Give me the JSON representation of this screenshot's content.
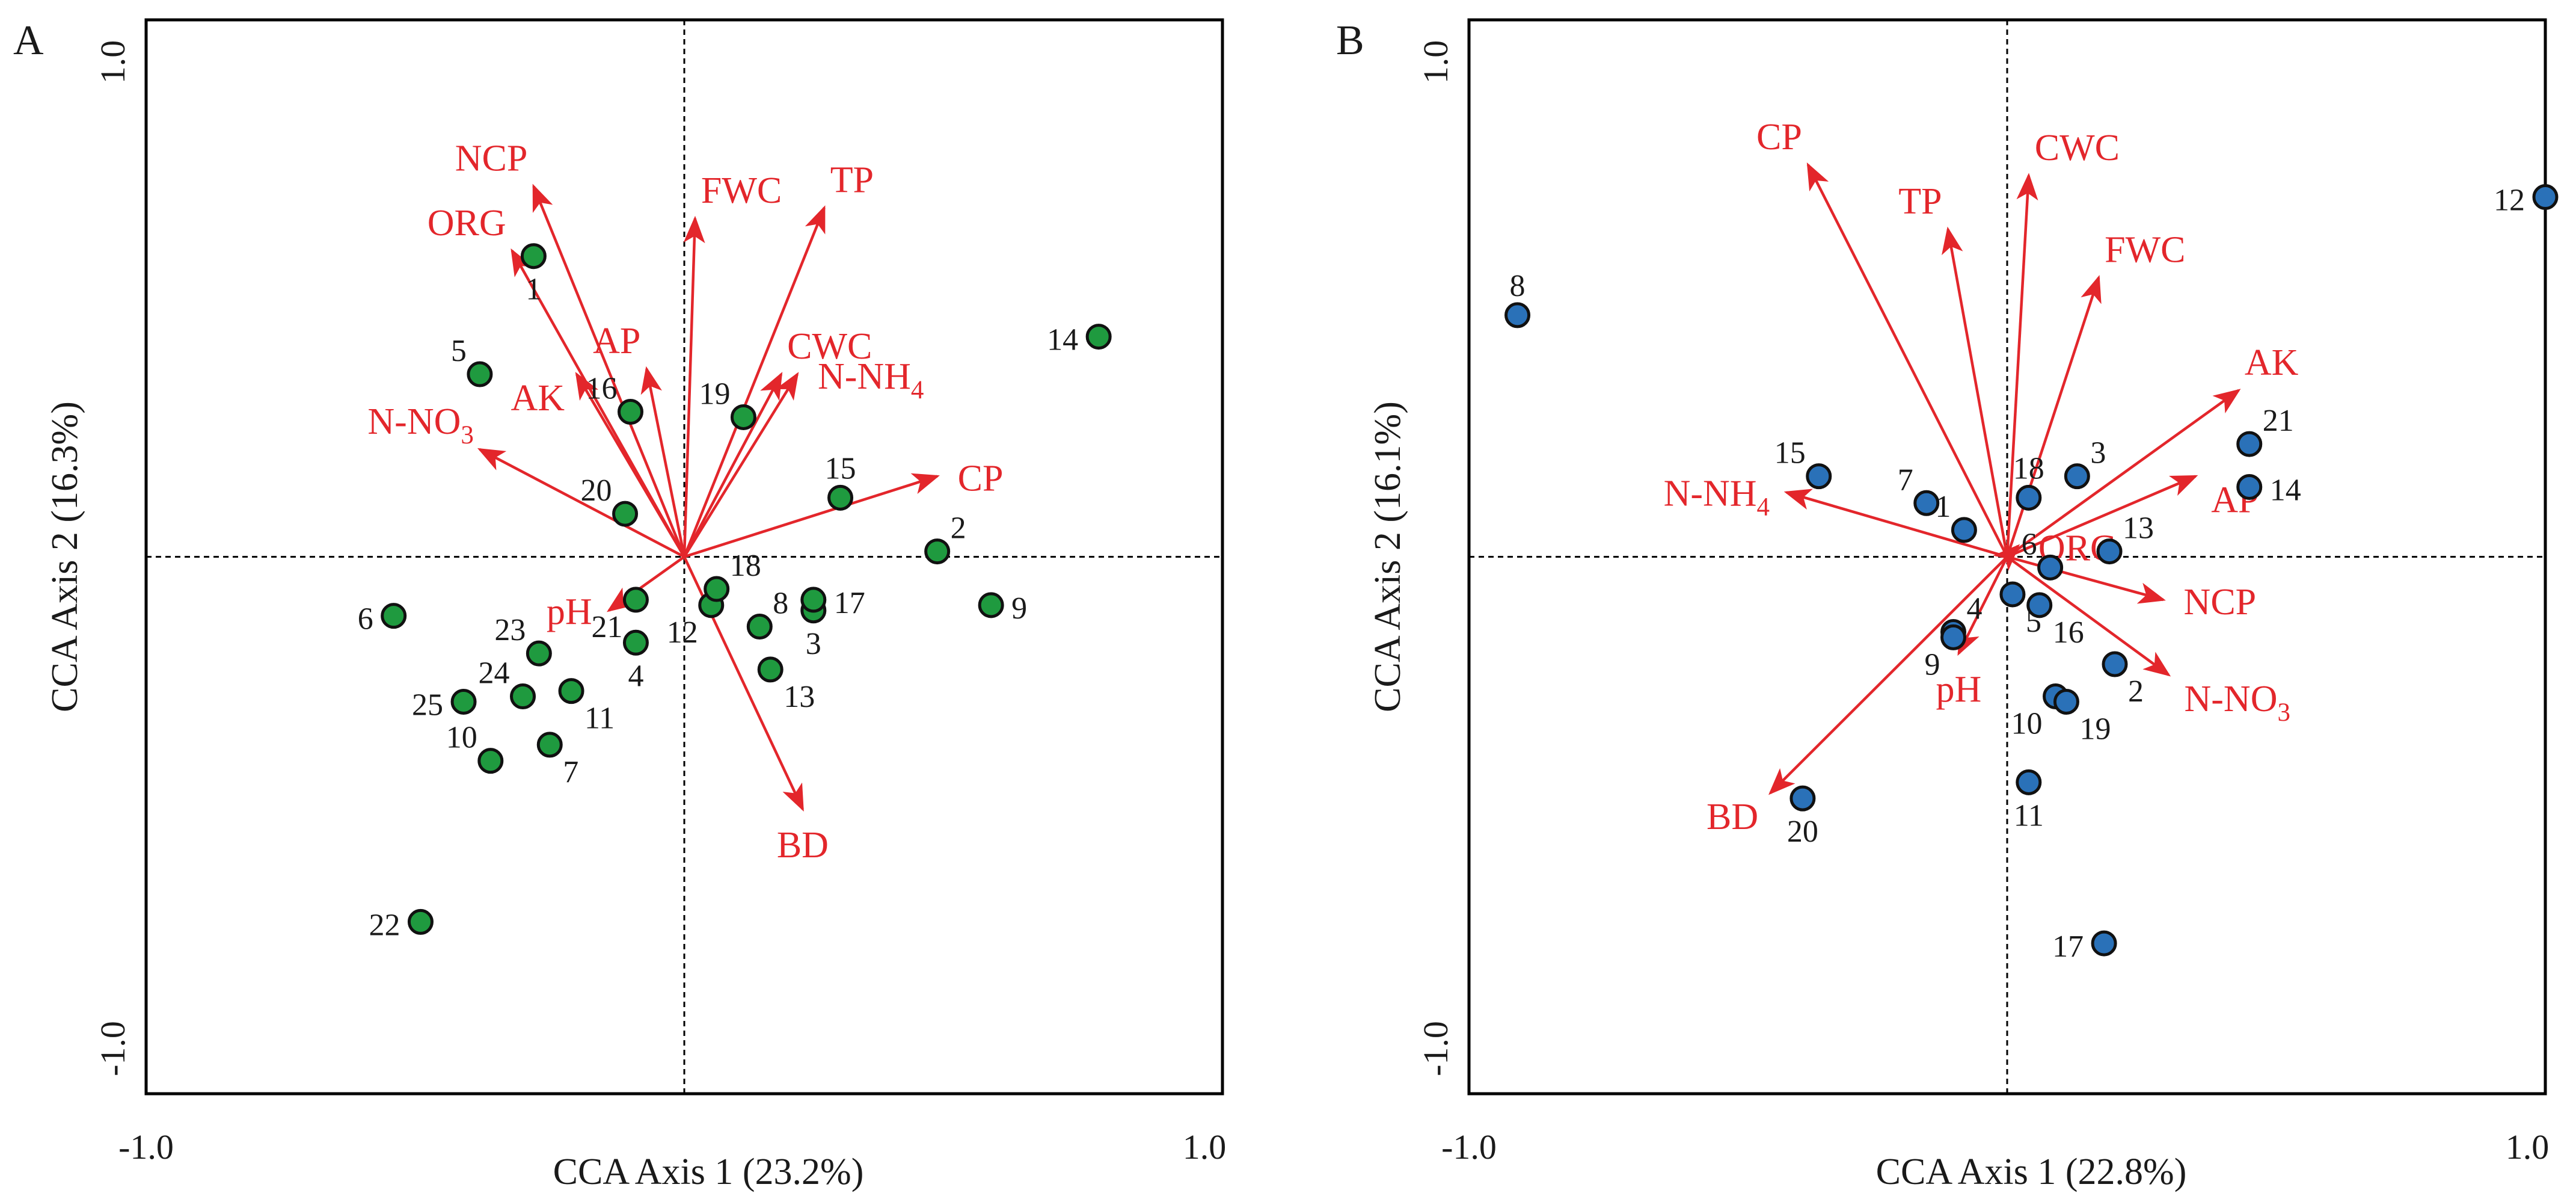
{
  "colors": {
    "arrow": "#e3262b",
    "label": "#e3262b",
    "panel_A_point": "#1f9a3f",
    "panel_B_point": "#2a71b8",
    "axis": "#000000",
    "text": "#1a1a1a"
  },
  "chart_data": [
    {
      "panel": "A",
      "type": "scatter",
      "subtype": "cca-biplot",
      "xlabel": "CCA Axis 1 (23.2%)",
      "ylabel": "CCA Axis 2 (16.3%)",
      "xlim": [
        -1.0,
        1.0
      ],
      "ylim": [
        -1.0,
        1.0
      ],
      "tick_labels": {
        "x_min": "-1.0",
        "x_max": "1.0",
        "y_min": "-1.0",
        "y_max": "1.0"
      },
      "points": [
        {
          "label": "1",
          "x": -0.28,
          "y": 0.56,
          "label_pos": "below"
        },
        {
          "label": "2",
          "x": 0.47,
          "y": 0.01,
          "label_pos": "upper-right"
        },
        {
          "label": "3",
          "x": 0.24,
          "y": -0.1,
          "label_pos": "below"
        },
        {
          "label": "4",
          "x": -0.09,
          "y": -0.16,
          "label_pos": "below"
        },
        {
          "label": "5",
          "x": -0.38,
          "y": 0.34,
          "label_pos": "upper-left"
        },
        {
          "label": "6",
          "x": -0.54,
          "y": -0.11,
          "label_pos": "left"
        },
        {
          "label": "7",
          "x": -0.25,
          "y": -0.35,
          "label_pos": "lower-right"
        },
        {
          "label": "8",
          "x": 0.14,
          "y": -0.13,
          "label_pos": "upper-right"
        },
        {
          "label": "9",
          "x": 0.57,
          "y": -0.09,
          "label_pos": "right"
        },
        {
          "label": "10",
          "x": -0.36,
          "y": -0.38,
          "label_pos": "upper-left"
        },
        {
          "label": "11",
          "x": -0.21,
          "y": -0.25,
          "label_pos": "lower-right"
        },
        {
          "label": "12",
          "x": 0.05,
          "y": -0.09,
          "label_pos": "lower-left"
        },
        {
          "label": "13",
          "x": 0.16,
          "y": -0.21,
          "label_pos": "lower-right"
        },
        {
          "label": "14",
          "x": 0.77,
          "y": 0.41,
          "label_pos": "left"
        },
        {
          "label": "15",
          "x": 0.29,
          "y": 0.11,
          "label_pos": "above"
        },
        {
          "label": "16",
          "x": -0.1,
          "y": 0.27,
          "label_pos": "upper-left"
        },
        {
          "label": "17",
          "x": 0.24,
          "y": -0.08,
          "label_pos": "right"
        },
        {
          "label": "18",
          "x": 0.06,
          "y": -0.06,
          "label_pos": "upper-right"
        },
        {
          "label": "19",
          "x": 0.11,
          "y": 0.26,
          "label_pos": "upper-left"
        },
        {
          "label": "20",
          "x": -0.11,
          "y": 0.08,
          "label_pos": "upper-left"
        },
        {
          "label": "21",
          "x": -0.09,
          "y": -0.08,
          "label_pos": "lower-left"
        },
        {
          "label": "22",
          "x": -0.49,
          "y": -0.68,
          "label_pos": "left"
        },
        {
          "label": "23",
          "x": -0.27,
          "y": -0.18,
          "label_pos": "upper-left"
        },
        {
          "label": "24",
          "x": -0.3,
          "y": -0.26,
          "label_pos": "upper-left"
        },
        {
          "label": "25",
          "x": -0.41,
          "y": -0.27,
          "label_pos": "left"
        }
      ],
      "vectors": [
        {
          "label": "NCP",
          "x": -0.28,
          "y": 0.69,
          "label_pos": "upper-left"
        },
        {
          "label": "ORG",
          "x": -0.32,
          "y": 0.57,
          "label_pos": "upper-left"
        },
        {
          "label": "AP",
          "x": -0.07,
          "y": 0.35,
          "label_pos": "upper-left"
        },
        {
          "label": "AK",
          "x": -0.2,
          "y": 0.34,
          "label_pos": "lower-left"
        },
        {
          "label": "N-NO3",
          "x": -0.38,
          "y": 0.2,
          "label_pos": "upper-left"
        },
        {
          "label": "FWC",
          "x": 0.02,
          "y": 0.63,
          "label_pos": "upper-right"
        },
        {
          "label": "TP",
          "x": 0.26,
          "y": 0.65,
          "label_pos": "upper-right"
        },
        {
          "label": "CWC",
          "x": 0.18,
          "y": 0.34,
          "label_pos": "upper-right"
        },
        {
          "label": "N-NH4",
          "x": 0.21,
          "y": 0.34,
          "label_pos": "right"
        },
        {
          "label": "CP",
          "x": 0.47,
          "y": 0.15,
          "label_pos": "right"
        },
        {
          "label": "pH",
          "x": -0.14,
          "y": -0.1,
          "label_pos": "left"
        },
        {
          "label": "BD",
          "x": 0.22,
          "y": -0.47,
          "label_pos": "below"
        }
      ]
    },
    {
      "panel": "B",
      "type": "scatter",
      "subtype": "cca-biplot",
      "xlabel": "CCA Axis 1 (22.8%)",
      "ylabel": "CCA Axis 2 (16.1%)",
      "xlim": [
        -1.0,
        1.0
      ],
      "ylim": [
        -1.0,
        1.0
      ],
      "tick_labels": {
        "x_min": "-1.0",
        "x_max": "1.0",
        "y_min": "-1.0",
        "y_max": "1.0"
      },
      "points": [
        {
          "label": "1",
          "x": -0.08,
          "y": 0.05,
          "label_pos": "upper-left"
        },
        {
          "label": "2",
          "x": 0.2,
          "y": -0.2,
          "label_pos": "lower-right"
        },
        {
          "label": "3",
          "x": 0.13,
          "y": 0.15,
          "label_pos": "upper-right"
        },
        {
          "label": "4",
          "x": -0.1,
          "y": -0.14,
          "label_pos": "upper-right"
        },
        {
          "label": "5",
          "x": 0.01,
          "y": -0.07,
          "label_pos": "lower-right"
        },
        {
          "label": "6",
          "x": 0.08,
          "y": -0.02,
          "label_pos": "upper-left"
        },
        {
          "label": "7",
          "x": -0.15,
          "y": 0.1,
          "label_pos": "upper-left"
        },
        {
          "label": "8",
          "x": -0.91,
          "y": 0.45,
          "label_pos": "above"
        },
        {
          "label": "9",
          "x": -0.1,
          "y": -0.15,
          "label_pos": "lower-left"
        },
        {
          "label": "10",
          "x": 0.09,
          "y": -0.26,
          "label_pos": "lower-left"
        },
        {
          "label": "11",
          "x": 0.04,
          "y": -0.42,
          "label_pos": "below"
        },
        {
          "label": "12",
          "x": 1.0,
          "y": 0.67,
          "label_pos": "left"
        },
        {
          "label": "13",
          "x": 0.19,
          "y": 0.01,
          "label_pos": "upper-right"
        },
        {
          "label": "14",
          "x": 0.45,
          "y": 0.13,
          "label_pos": "right"
        },
        {
          "label": "15",
          "x": -0.35,
          "y": 0.15,
          "label_pos": "upper-left"
        },
        {
          "label": "16",
          "x": 0.06,
          "y": -0.09,
          "label_pos": "lower-right"
        },
        {
          "label": "17",
          "x": 0.18,
          "y": -0.72,
          "label_pos": "left"
        },
        {
          "label": "18",
          "x": 0.04,
          "y": 0.11,
          "label_pos": "above"
        },
        {
          "label": "19",
          "x": 0.11,
          "y": -0.27,
          "label_pos": "lower-right"
        },
        {
          "label": "20",
          "x": -0.38,
          "y": -0.45,
          "label_pos": "below"
        },
        {
          "label": "21",
          "x": 0.45,
          "y": 0.21,
          "label_pos": "upper-right"
        }
      ],
      "vectors": [
        {
          "label": "CP",
          "x": -0.37,
          "y": 0.73,
          "label_pos": "upper-left"
        },
        {
          "label": "TP",
          "x": -0.11,
          "y": 0.61,
          "label_pos": "upper-left"
        },
        {
          "label": "CWC",
          "x": 0.04,
          "y": 0.71,
          "label_pos": "upper-right"
        },
        {
          "label": "FWC",
          "x": 0.17,
          "y": 0.52,
          "label_pos": "upper-right"
        },
        {
          "label": "AK",
          "x": 0.43,
          "y": 0.31,
          "label_pos": "upper-right"
        },
        {
          "label": "AP",
          "x": 0.35,
          "y": 0.15,
          "label_pos": "lower-right"
        },
        {
          "label": "NCP",
          "x": 0.29,
          "y": -0.08,
          "label_pos": "right"
        },
        {
          "label": "N-NO3",
          "x": 0.3,
          "y": -0.22,
          "label_pos": "lower-right"
        },
        {
          "label": "N-NH4",
          "x": -0.41,
          "y": 0.12,
          "label_pos": "left"
        },
        {
          "label": "BD",
          "x": -0.44,
          "y": -0.44,
          "label_pos": "lower-left"
        },
        {
          "label": "pH",
          "x": -0.09,
          "y": -0.18,
          "label_pos": "below"
        },
        {
          "label": "ORG",
          "x": 0.02,
          "y": 0.02,
          "label_pos": "right"
        }
      ]
    }
  ]
}
